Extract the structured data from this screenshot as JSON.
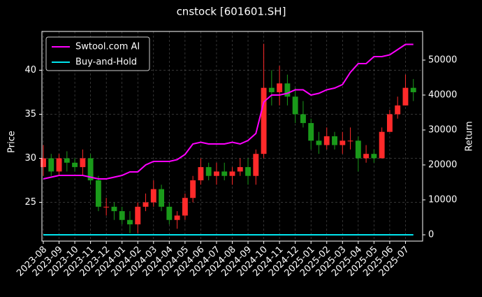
{
  "chart_data": {
    "type": "candlestick",
    "title": "cnstock [601601.SH]",
    "ylabel": "Price",
    "y2label": "Return",
    "categories": [
      "2023-08",
      null,
      "2023-09",
      null,
      "2023-10",
      null,
      "2023-11",
      null,
      "2023-12",
      null,
      "2024-01",
      null,
      "2024-02",
      null,
      "2024-03",
      null,
      "2024-04",
      null,
      "2024-05",
      null,
      "2024-06",
      null,
      "2024-07",
      null,
      "2024-08",
      null,
      "2024-09",
      null,
      "2024-10",
      null,
      "2024-11",
      null,
      "2024-12",
      null,
      "2025-01",
      null,
      "2025-02",
      null,
      "2025-03",
      null,
      "2025-04",
      null,
      "2025-05",
      null,
      "2025-06",
      null,
      "2025-07",
      null
    ],
    "open": [
      29,
      30,
      28.5,
      30,
      29.5,
      29,
      30,
      27.5,
      24.5,
      24.5,
      24,
      23,
      22.5,
      24.5,
      25,
      26.5,
      24.5,
      23,
      23.5,
      25.5,
      27.5,
      29,
      28,
      28.5,
      28,
      28.5,
      29,
      28,
      30.5,
      38,
      37.5,
      38.5,
      37,
      35,
      34,
      32,
      31.5,
      32.5,
      31.5,
      32,
      32,
      30,
      30.5,
      30,
      33,
      35,
      36,
      38
    ],
    "high": [
      31.5,
      30.5,
      30.5,
      30.8,
      30,
      31,
      30.5,
      28,
      25.5,
      25,
      24.5,
      24,
      25,
      26,
      27.5,
      27,
      25,
      24,
      26,
      28,
      30,
      29.5,
      29.5,
      29.5,
      29,
      30,
      30,
      31,
      43,
      40,
      40.5,
      39.5,
      38,
      36.5,
      34.5,
      33,
      33.5,
      33,
      33,
      33.5,
      32.5,
      31.5,
      31,
      33.5,
      35.5,
      37,
      39.5,
      39
    ],
    "low": [
      28,
      28,
      28,
      28.5,
      28.5,
      28,
      27,
      24,
      23.5,
      23,
      22.5,
      21.5,
      21.5,
      24,
      24.5,
      24,
      22.5,
      22,
      23,
      25,
      27,
      27.5,
      27,
      27.5,
      27,
      28,
      27,
      27,
      30,
      36,
      36,
      36,
      34,
      33.5,
      31,
      30.5,
      31,
      31,
      30.5,
      31,
      28.5,
      29.5,
      29.5,
      30,
      33,
      34.5,
      36,
      36.5
    ],
    "close": [
      30,
      28.5,
      30,
      29.5,
      29,
      30,
      27.5,
      24.5,
      24.5,
      24,
      23,
      22.5,
      24.5,
      25,
      26.5,
      24.5,
      23,
      23.5,
      25.5,
      27.5,
      29,
      28,
      28.5,
      28,
      28.5,
      29,
      28,
      30.5,
      38,
      37.5,
      38.5,
      37,
      35,
      34,
      32,
      31.5,
      32.5,
      31.5,
      32,
      32,
      30,
      30.5,
      30,
      33,
      35,
      36,
      38,
      37.5
    ],
    "up_color": "#ff2a2a",
    "down_color": "#1a9a1a",
    "series": [
      {
        "name": "Swtool.com AI",
        "color": "#ff00ff",
        "axis": "y2",
        "values": [
          16000,
          16500,
          17000,
          17000,
          17000,
          17000,
          16500,
          16000,
          16000,
          16500,
          17000,
          18000,
          18000,
          20000,
          21000,
          21000,
          21000,
          21500,
          23000,
          26000,
          26500,
          26000,
          26000,
          26000,
          26500,
          26000,
          27000,
          29000,
          38000,
          40000,
          40000,
          40500,
          41500,
          41500,
          40000,
          40500,
          41500,
          42000,
          43000,
          46500,
          49000,
          49000,
          51000,
          51000,
          51500,
          53000,
          54500,
          54500
        ]
      },
      {
        "name": "Buy-and-Hold",
        "color": "#00e5ee",
        "axis": "y2",
        "values": [
          0,
          0,
          0,
          0,
          0,
          0,
          0,
          0,
          0,
          0,
          0,
          0,
          0,
          0,
          0,
          0,
          0,
          0,
          0,
          0,
          0,
          0,
          0,
          0,
          0,
          0,
          0,
          0,
          0,
          0,
          0,
          0,
          0,
          0,
          0,
          0,
          0,
          0,
          0,
          0,
          0,
          0,
          0,
          0,
          0,
          0,
          0,
          0
        ]
      }
    ],
    "ylim": [
      20.6,
      44.4
    ],
    "yticks": [
      25,
      30,
      35,
      40
    ],
    "y2lim": [
      -1800,
      58200
    ],
    "y2ticks": [
      0,
      10000,
      20000,
      30000,
      40000,
      50000
    ],
    "grid": true,
    "legend": "upper left"
  }
}
